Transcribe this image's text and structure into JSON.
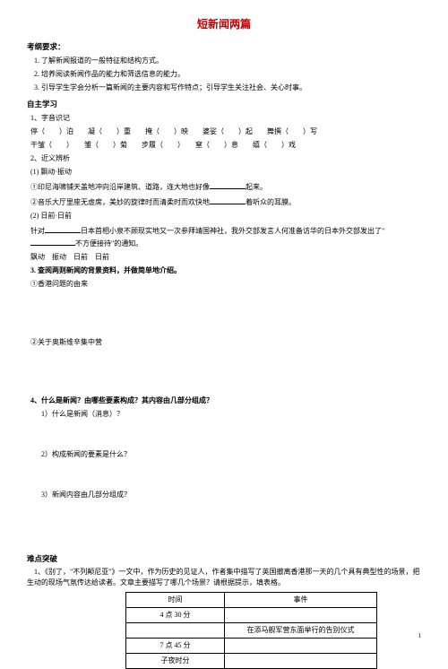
{
  "title": "短新闻两篇",
  "section1_head": "考纲要求：",
  "section1_items": [
    "1. 了解新闻报道的一般特征和结构方式。",
    "2. 培养阅读新闻作品的能力和筛选信息的能力。",
    "3. 引导学生学会分析一篇新闻的主要内容和写作特点；引导学生关注社会、关心时事。"
  ],
  "section2_head": "自主学习",
  "zy_item1": "1、字音识记",
  "zy_line1a": "停（　　）泊　　凝（　　）重　　掩（　　）映　　婆娑（　　）起　　舞撰（　　）写",
  "zy_line1b": "干皱（　　）　　雏（　　）菊　　步履（　　）　　窒（　　）息　　嬉（　　）戏",
  "zy_item2": "2、近义辨析",
  "zy_21": "(1) 飘动·振动",
  "zy_21a": "①印尼海啸铺天盖地冲向沿岸建筑、道路，连大地也好像",
  "zy_21a_tail": "起来。",
  "zy_21b": "②音乐大厅里座无虚席，美妙的旋律时而清柔时而欢快地",
  "zy_21b_tail": "着听众的耳膜。",
  "zy_22": "(2) 日前·日前",
  "zy_22a": "针对",
  "zy_22a_mid": "日本首相小泉不顾现实地又一次参拜靖国神社，我外交部发言人何准备访华的日本外交部发出了\"",
  "zy_22a_tail": "不方便接待\"的通知。",
  "zy_22b": "飘动　振动　日前　日前",
  "zy_item3": "3. 查阅两则新闻的背景资料，并做简单地介绍。",
  "zy_31": "①香港问题的由来",
  "zy_32": "②关于奥斯维辛集中营",
  "q4_head": "4、什么是新闻？由哪些要素构成？其内容由几部分组成？",
  "q4_1": "1）什么是新闻（消息）？",
  "q4_2": "2）构成新闻的要素是什么？",
  "q4_3": "3）新闻内容由几部分组成？",
  "nd_head": "难点突破",
  "nd_para": "1、《别了，\"不列颠尼亚\"》一文中，作为历史的见证人，作者集中描写了英国撤离香港那一天的几个具有典型性的场景，把生动的现场气氛传达给读者。文章主要描写了哪几个场景？请根据提示，填表格。",
  "table_headers": {
    "time": "时间",
    "event": "事件"
  },
  "table_rows": [
    {
      "time": "4 点 30 分",
      "event": ""
    },
    {
      "time": "",
      "event": "在添马舰军营东面举行的告别仪式"
    },
    {
      "time": "7 点 45 分",
      "event": ""
    },
    {
      "time": "子夜时分",
      "event": ""
    }
  ],
  "page_number": "1"
}
